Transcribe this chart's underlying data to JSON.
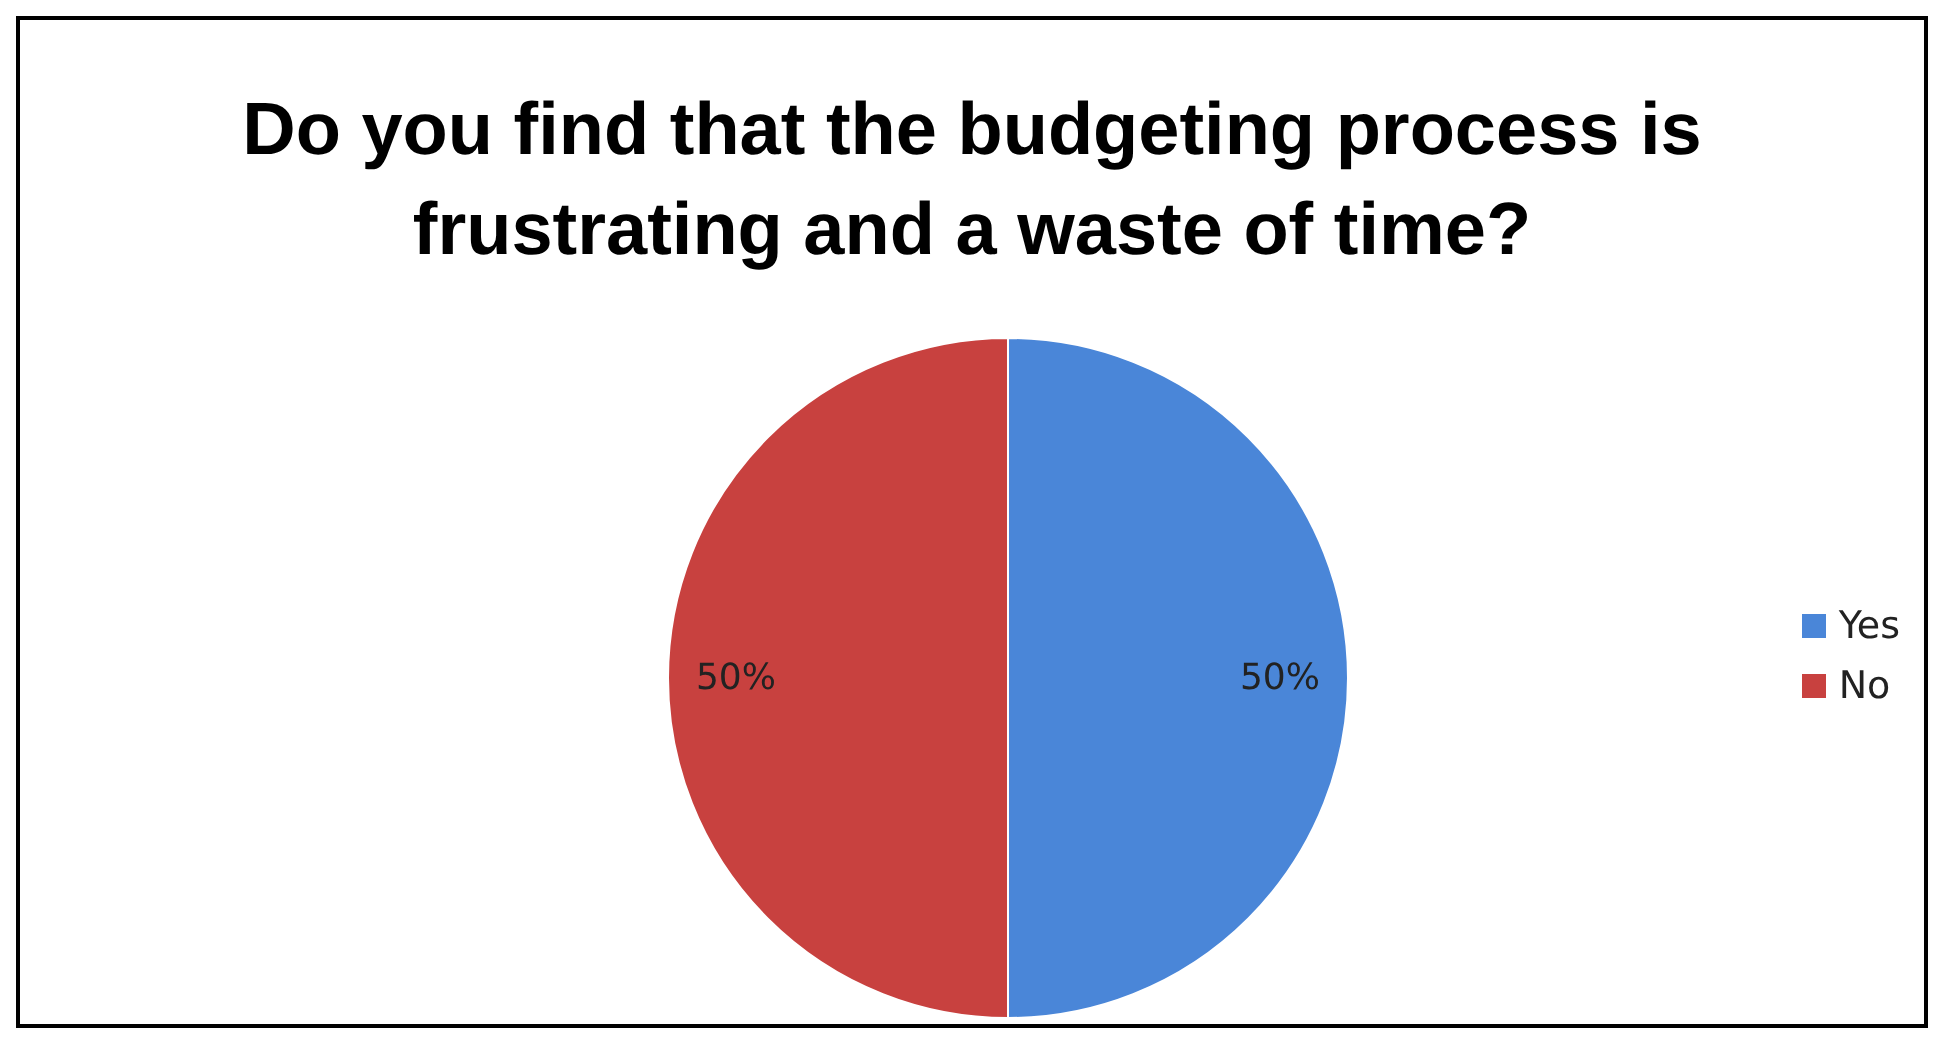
{
  "chart_data": {
    "type": "pie",
    "title": "Do you find that the budgeting process is frustrating and a waste of time?",
    "categories": [
      "Yes",
      "No"
    ],
    "values": [
      50,
      50
    ],
    "colors": [
      "#4a86d8",
      "#c8413f"
    ],
    "value_labels": [
      "50%",
      "50%"
    ],
    "legend": "right"
  }
}
